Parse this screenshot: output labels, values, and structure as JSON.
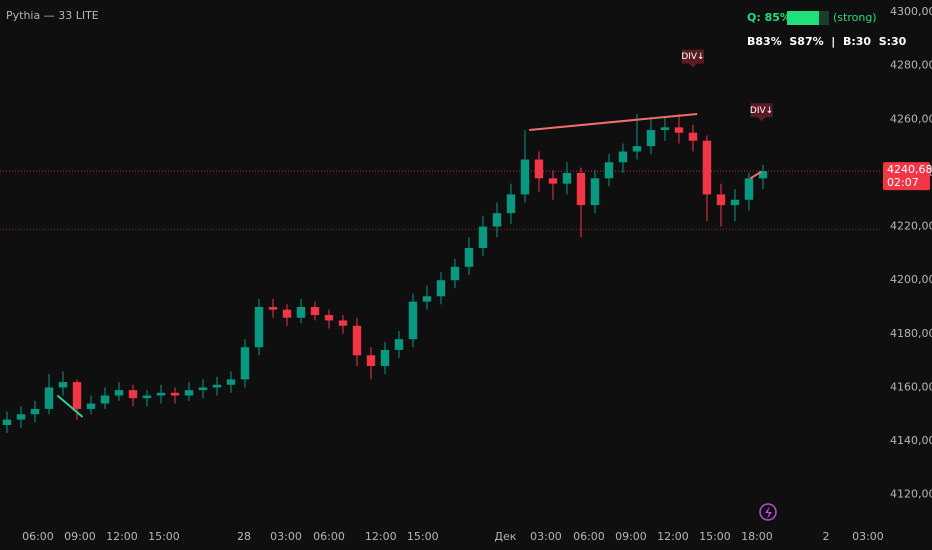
{
  "chart_data": {
    "type": "candlestick",
    "title": "Pythia — 33 LITE",
    "up_color": "#089981",
    "down_color": "#f23645",
    "xlim": [
      0,
      62.86
    ],
    "ylim": [
      4108.7,
      4304.5
    ],
    "xticks": [
      {
        "value": 2.71,
        "label": "06:00"
      },
      {
        "value": 5.71,
        "label": "09:00"
      },
      {
        "value": 8.71,
        "label": "12:00"
      },
      {
        "value": 11.71,
        "label": "15:00"
      },
      {
        "value": 17.43,
        "label": "28"
      },
      {
        "value": 20.43,
        "label": "03:00"
      },
      {
        "value": 23.5,
        "label": "06:00"
      },
      {
        "value": 27.2,
        "label": "12:00"
      },
      {
        "value": 30.2,
        "label": "15:00"
      },
      {
        "value": 36.1,
        "label": "Дек"
      },
      {
        "value": 39,
        "label": "03:00"
      },
      {
        "value": 42.07,
        "label": "06:00"
      },
      {
        "value": 45.07,
        "label": "09:00"
      },
      {
        "value": 48.07,
        "label": "12:00"
      },
      {
        "value": 51.07,
        "label": "15:00"
      },
      {
        "value": 54.07,
        "label": "18:00"
      },
      {
        "value": 59,
        "label": "2"
      },
      {
        "value": 62,
        "label": "03:00"
      }
    ],
    "yticks": [
      {
        "value": 4300,
        "label": "4300,00"
      },
      {
        "value": 4280,
        "label": "4280,00"
      },
      {
        "value": 4260,
        "label": "4260,00"
      },
      {
        "value": 4240,
        "label": "4240,00"
      },
      {
        "value": 4220,
        "label": "4220,00"
      },
      {
        "value": 4200,
        "label": "4200,00"
      },
      {
        "value": 4180,
        "label": "4180,00"
      },
      {
        "value": 4160,
        "label": "4160,00"
      },
      {
        "value": 4140,
        "label": "4140,00"
      },
      {
        "value": 4120,
        "label": "4120,00"
      }
    ],
    "close": [
      4148,
      4150,
      4152,
      4160,
      4162,
      4152,
      4154,
      4157,
      4159,
      4156,
      4157,
      4158,
      4157,
      4159,
      4160,
      4161,
      4163,
      4175,
      4190,
      4189,
      4186,
      4190,
      4187,
      4185,
      4183,
      4172,
      4168,
      4174,
      4178,
      4192,
      4194,
      4200,
      4205,
      4212,
      4220,
      4225,
      4232,
      4245,
      4238,
      4236,
      4240,
      4228,
      4238,
      4244,
      4248,
      4250,
      4256,
      4257,
      4255,
      4252,
      4232,
      4228,
      4230,
      4238,
      4240.68
    ],
    "open": [
      4146,
      4148,
      4150,
      4152,
      4160,
      4162,
      4152,
      4154,
      4157,
      4159,
      4156,
      4157,
      4158,
      4157,
      4159,
      4160,
      4161,
      4163,
      4175,
      4190,
      4189,
      4186,
      4190,
      4187,
      4185,
      4183,
      4172,
      4168,
      4174,
      4178,
      4192,
      4194,
      4200,
      4205,
      4212,
      4220,
      4225,
      4232,
      4245,
      4238,
      4236,
      4240,
      4228,
      4238,
      4244,
      4248,
      4250,
      4256,
      4257,
      4255,
      4252,
      4232,
      4228,
      4230,
      4238
    ],
    "high": [
      4151,
      4153,
      4155,
      4165,
      4166,
      4163,
      4157,
      4160,
      4162,
      4161,
      4159,
      4161,
      4160,
      4162,
      4163,
      4164,
      4166,
      4178,
      4193,
      4193,
      4191,
      4193,
      4192,
      4189,
      4187,
      4186,
      4175,
      4177,
      4181,
      4195,
      4198,
      4203,
      4208,
      4216,
      4224,
      4229,
      4236,
      4256,
      4248,
      4241,
      4244,
      4242,
      4241,
      4247,
      4251,
      4262,
      4260,
      4261,
      4262,
      4258,
      4254,
      4236,
      4234,
      4240,
      4243
    ],
    "low": [
      4143,
      4145,
      4147,
      4150,
      4157,
      4148,
      4150,
      4152,
      4155,
      4153,
      4153,
      4154,
      4154,
      4155,
      4156,
      4157,
      4158,
      4160,
      4172,
      4186,
      4183,
      4184,
      4185,
      4182,
      4180,
      4168,
      4163,
      4165,
      4171,
      4175,
      4189,
      4191,
      4197,
      4202,
      4209,
      4216,
      4221,
      4229,
      4233,
      4230,
      4232,
      4216,
      4225,
      4235,
      4240,
      4245,
      4247,
      4252,
      4251,
      4248,
      4222,
      4220,
      4222,
      4226,
      4234
    ],
    "annotations": [
      {
        "x": [
          37.8,
          49.8
        ],
        "y": [
          4256,
          4262
        ],
        "color": "#f26d6d"
      },
      {
        "x": [
          4.1,
          5.9
        ],
        "y": [
          4157,
          4149
        ],
        "color": "#2fd18a"
      },
      {
        "x": [
          53.6,
          54.4
        ],
        "y": [
          4238,
          4240.5
        ],
        "color": "#f26d6d"
      }
    ],
    "div_labels": [
      {
        "text": "DIV↓",
        "x": 49.5,
        "y": 4283
      },
      {
        "text": "DIV↓",
        "x": 54.4,
        "y": 4263
      }
    ],
    "last_price": {
      "value": 4240.68,
      "label": "4240,68",
      "countdown": "02:07"
    },
    "level": 4219,
    "panel": {
      "q": "Q: 85%",
      "strength": "(strong)",
      "stats": "B83%  S87%  |  B:30  S:30"
    }
  }
}
